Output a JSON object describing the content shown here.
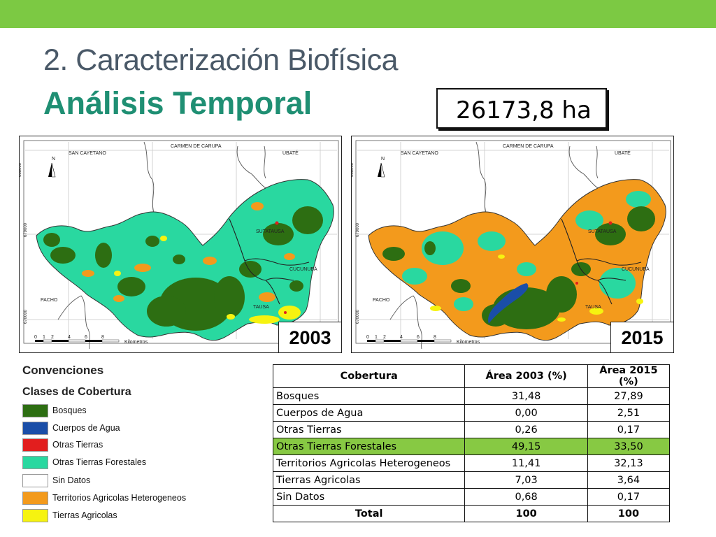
{
  "slide": {
    "title": "2. Caracterización Biofísica",
    "subtitle": "Análisis Temporal",
    "area_label": "26173,8 ha"
  },
  "maps": [
    {
      "year": "2003",
      "places": [
        "SAN CAYETANO",
        "CARMEN DE CARUPA",
        "UBATÉ",
        "SUTATAUSA",
        "CUCUNUBÁ",
        "PACHO",
        "TAUSA"
      ],
      "north": "N",
      "coords": [
        "688000",
        "679000",
        "670000"
      ],
      "scale_ticks": [
        "0",
        "1",
        "2",
        "4",
        "6",
        "8"
      ],
      "scale_unit": "Kilometros"
    },
    {
      "year": "2015",
      "places": [
        "SAN CAYETANO",
        "CARMEN DE CARUPA",
        "UBATÉ",
        "SUTATAUSA",
        "CUCUNUBÁ",
        "PACHO",
        "TAUSA"
      ],
      "north": "N",
      "coords": [
        "688000",
        "679000",
        "670000"
      ],
      "scale_ticks": [
        "0",
        "1",
        "2",
        "4",
        "6",
        "8"
      ],
      "scale_unit": "Kilometros"
    }
  ],
  "legend": {
    "title": "Convenciones",
    "subtitle": "Clases de Cobertura",
    "items": [
      {
        "label": "Bosques",
        "color": "#2d6e12"
      },
      {
        "label": "Cuerpos de Agua",
        "color": "#1a4ea8"
      },
      {
        "label": "Otras Tierras",
        "color": "#e21e1e"
      },
      {
        "label": "Otras Tierras Forestales",
        "color": "#29d8a0"
      },
      {
        "label": "Sin Datos",
        "color": "#ffffff"
      },
      {
        "label": "Territorios Agricolas Heterogeneos",
        "color": "#f39a1c"
      },
      {
        "label": "Tierras Agricolas",
        "color": "#f6f310"
      }
    ]
  },
  "table": {
    "headers": [
      "Cobertura",
      "Área 2003 (%)",
      "Área 2015 (%)"
    ],
    "rows": [
      [
        "Bosques",
        "31,48",
        "27,89"
      ],
      [
        "Cuerpos de Agua",
        "0,00",
        "2,51"
      ],
      [
        "Otras Tierras",
        "0,26",
        "0,17"
      ],
      [
        "Otras Tierras Forestales",
        "49,15",
        "33,50"
      ],
      [
        "Territorios Agricolas Heterogeneos",
        "11,41",
        "32,13"
      ],
      [
        "Tierras Agricolas",
        "7,03",
        "3,64"
      ],
      [
        "Sin Datos",
        "0,68",
        "0,17"
      ]
    ],
    "total": [
      "Total",
      "100",
      "100"
    ],
    "highlight_color": "#87c943"
  },
  "colors": {
    "top_bar": "#7cc943",
    "title": "#4a5968",
    "subtitle": "#1f8f73"
  }
}
